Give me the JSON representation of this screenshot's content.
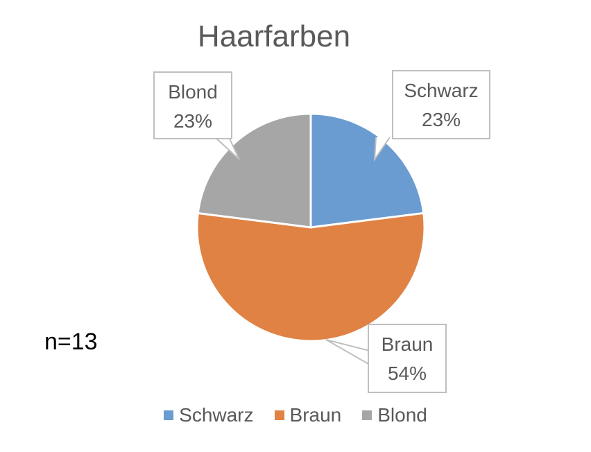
{
  "chart_data": {
    "type": "pie",
    "title": "Haarfarben",
    "categories": [
      "Schwarz",
      "Braun",
      "Blond"
    ],
    "values": [
      23,
      54,
      23
    ],
    "value_labels": [
      "23%",
      "54%",
      "23%"
    ],
    "colors": [
      "#6A9BD1",
      "#E08244",
      "#A6A6A6"
    ],
    "legend_position": "bottom"
  },
  "annotation": "n=13"
}
